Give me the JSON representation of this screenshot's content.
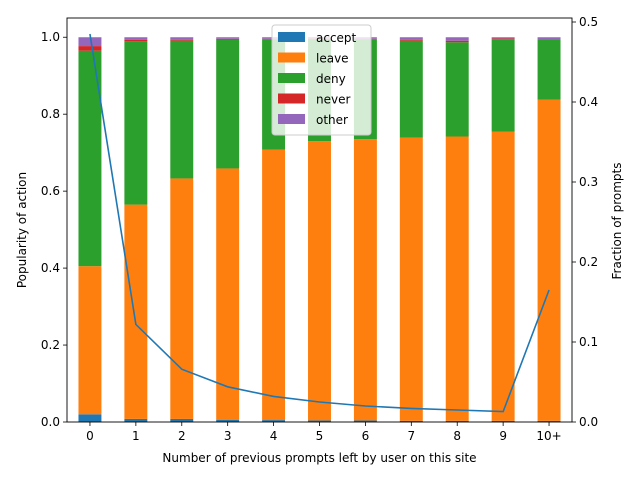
{
  "chart_data": {
    "type": "bar",
    "stacked": true,
    "title": "",
    "xlabel": "Number of previous prompts left by user on this site",
    "ylabel": "Popularity of action",
    "y2label": "Fraction of prompts",
    "categories": [
      "0",
      "1",
      "2",
      "3",
      "4",
      "5",
      "6",
      "7",
      "8",
      "9",
      "10+"
    ],
    "ylim": [
      0,
      1.05
    ],
    "yticks": [
      "0.0",
      "0.2",
      "0.4",
      "0.6",
      "0.8",
      "1.0"
    ],
    "y2lim": [
      0,
      0.505
    ],
    "y2ticks": [
      "0.0",
      "0.1",
      "0.2",
      "0.3",
      "0.4",
      "0.5"
    ],
    "legend_position": "top-center",
    "series": [
      {
        "name": "accept",
        "color": "#1f77b4",
        "values": [
          0.02,
          0.008,
          0.008,
          0.006,
          0.005,
          0.004,
          0.004,
          0.003,
          0.003,
          0.003,
          0.003
        ]
      },
      {
        "name": "leave",
        "color": "#ff7f0e",
        "values": [
          0.385,
          0.557,
          0.625,
          0.653,
          0.703,
          0.726,
          0.731,
          0.736,
          0.739,
          0.752,
          0.835
        ]
      },
      {
        "name": "deny",
        "color": "#2ca02c",
        "values": [
          0.56,
          0.425,
          0.358,
          0.335,
          0.287,
          0.266,
          0.26,
          0.252,
          0.245,
          0.24,
          0.155
        ]
      },
      {
        "name": "never",
        "color": "#d62728",
        "values": [
          0.012,
          0.003,
          0.002,
          0.002,
          0.001,
          0.001,
          0.001,
          0.002,
          0.004,
          0.002,
          0.001
        ]
      },
      {
        "name": "other",
        "color": "#9467bd",
        "values": [
          0.023,
          0.007,
          0.007,
          0.004,
          0.004,
          0.003,
          0.004,
          0.007,
          0.009,
          0.003,
          0.006
        ]
      }
    ],
    "line": {
      "axis": "right",
      "color": "#1f77b4",
      "values": [
        0.485,
        0.122,
        0.066,
        0.044,
        0.032,
        0.025,
        0.02,
        0.017,
        0.015,
        0.013,
        0.165
      ]
    }
  }
}
